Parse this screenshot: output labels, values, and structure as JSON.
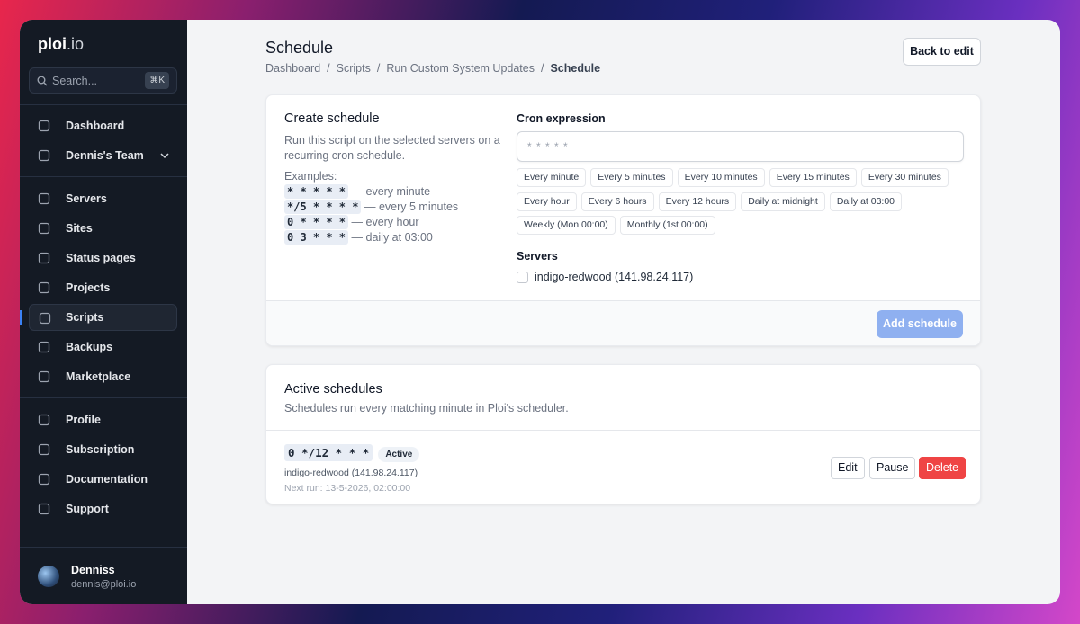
{
  "sidebar": {
    "logo": {
      "name": "ploi",
      "suffix": ".io"
    },
    "search": {
      "placeholder": "Search...",
      "shortcut": "⌘K"
    },
    "nav_groups": [
      [
        {
          "label": "Dashboard"
        },
        {
          "label": "Dennis's Team"
        }
      ],
      [
        {
          "label": "Servers"
        },
        {
          "label": "Sites"
        },
        {
          "label": "Status pages"
        },
        {
          "label": "Projects"
        },
        {
          "label": "Scripts",
          "active": true
        },
        {
          "label": "Backups"
        },
        {
          "label": "Marketplace"
        }
      ],
      [
        {
          "label": "Profile"
        },
        {
          "label": "Subscription"
        },
        {
          "label": "Documentation"
        },
        {
          "label": "Support"
        }
      ]
    ],
    "user": {
      "name": "Denniss",
      "email": "dennis@ploi.io"
    }
  },
  "header": {
    "title": "Schedule",
    "breadcrumb": [
      "Dashboard",
      "Scripts",
      "Run Custom System Updates",
      "Schedule"
    ],
    "separator": "/",
    "back_button": "Back to edit"
  },
  "create_schedule": {
    "title": "Create schedule",
    "description": "Run this script on the selected servers on a recurring cron schedule.",
    "examples_label": "Examples:",
    "examples": [
      {
        "code": "* * * * *",
        "text": "— every minute"
      },
      {
        "code": "*/5 * * * *",
        "text": "— every 5 minutes"
      },
      {
        "code": "0 * * * *",
        "text": "— every hour"
      },
      {
        "code": "0 3 * * *",
        "text": "— daily at 03:00"
      }
    ],
    "cron_label": "Cron expression",
    "cron_placeholder": "* * * * *",
    "presets": [
      "Every minute",
      "Every 5 minutes",
      "Every 10 minutes",
      "Every 15 minutes",
      "Every 30 minutes",
      "Every hour",
      "Every 6 hours",
      "Every 12 hours",
      "Daily at midnight",
      "Daily at 03:00",
      "Weekly (Mon 00:00)",
      "Monthly (1st 00:00)"
    ],
    "servers_label": "Servers",
    "servers": [
      "indigo-redwood (141.98.24.117)"
    ],
    "submit_button": "Add schedule"
  },
  "active_schedules": {
    "title": "Active schedules",
    "description": "Schedules run every matching minute in Ploi's scheduler.",
    "items": [
      {
        "cron": "0 */12 * * *",
        "status": "Active",
        "server": "indigo-redwood (141.98.24.117)",
        "next_run": "Next run: 13-5-2026, 02:00:00",
        "actions": [
          "Edit",
          "Pause",
          "Delete"
        ]
      }
    ]
  }
}
